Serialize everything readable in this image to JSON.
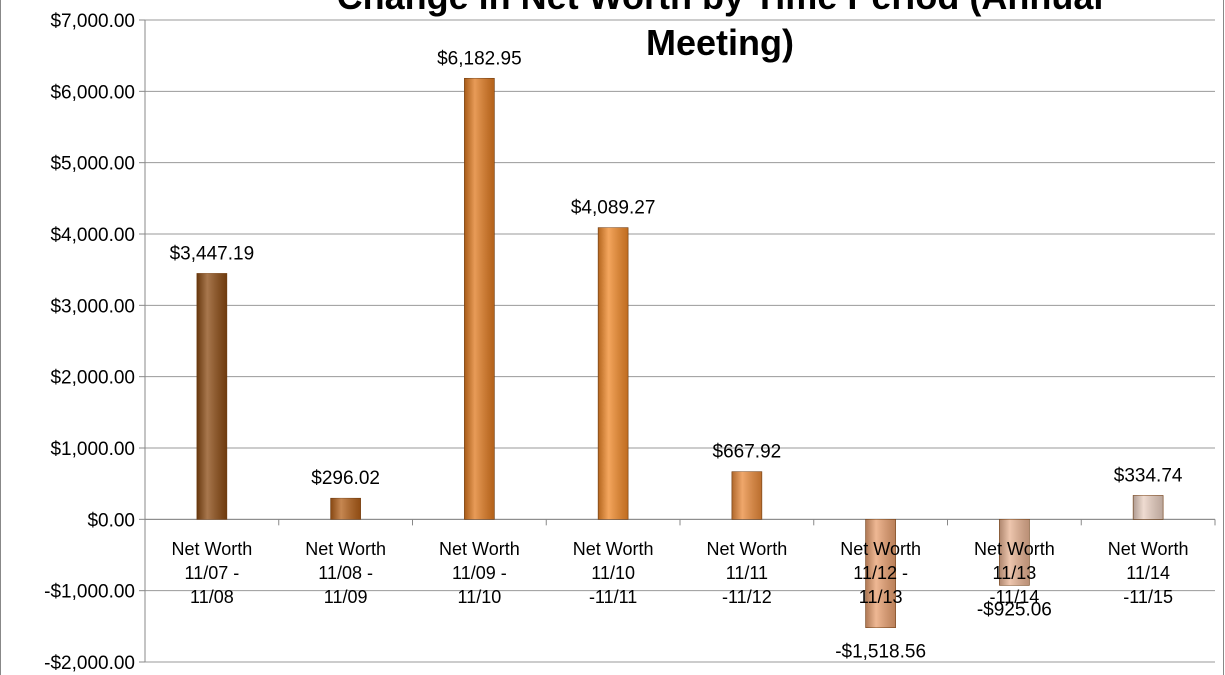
{
  "chart_data": {
    "type": "bar",
    "title": "Change in Net Worth by Time Period (Annual Meeting)",
    "categories": [
      "Net Worth 11/07 - 11/08",
      "Net Worth 11/08 - 11/09",
      "Net Worth 11/09 - 11/10",
      "Net Worth 11/10 -11/11",
      "Net Worth 11/11 -11/12",
      "Net Worth 11/12 - 11/13",
      "Net Worth 11/13 -11/14",
      "Net Worth 11/14 -11/15"
    ],
    "values": [
      3447.19,
      296.02,
      6182.95,
      4089.27,
      667.92,
      -1518.56,
      -925.06,
      334.74
    ],
    "value_labels": [
      "$3,447.19",
      "$296.02",
      "$6,182.95",
      "$4,089.27",
      "$667.92",
      "-$1,518.56",
      "-$925.06",
      "$334.74"
    ],
    "colors": [
      "#8b4a12",
      "#b35f18",
      "#e07a20",
      "#f08828",
      "#ea8a3a",
      "#e9a070",
      "#e8b393",
      "#ead0c2"
    ],
    "ylim": [
      -2000,
      7000
    ],
    "yticks": [
      {
        "value": -2000,
        "label": "-$2,000.00"
      },
      {
        "value": -1000,
        "label": "-$1,000.00"
      },
      {
        "value": 0,
        "label": "$0.00"
      },
      {
        "value": 1000,
        "label": "$1,000.00"
      },
      {
        "value": 2000,
        "label": "$2,000.00"
      },
      {
        "value": 3000,
        "label": "$3,000.00"
      },
      {
        "value": 4000,
        "label": "$4,000.00"
      },
      {
        "value": 5000,
        "label": "$5,000.00"
      },
      {
        "value": 6000,
        "label": "$6,000.00"
      },
      {
        "value": 7000,
        "label": "$7,000.00"
      }
    ],
    "grid": true
  }
}
